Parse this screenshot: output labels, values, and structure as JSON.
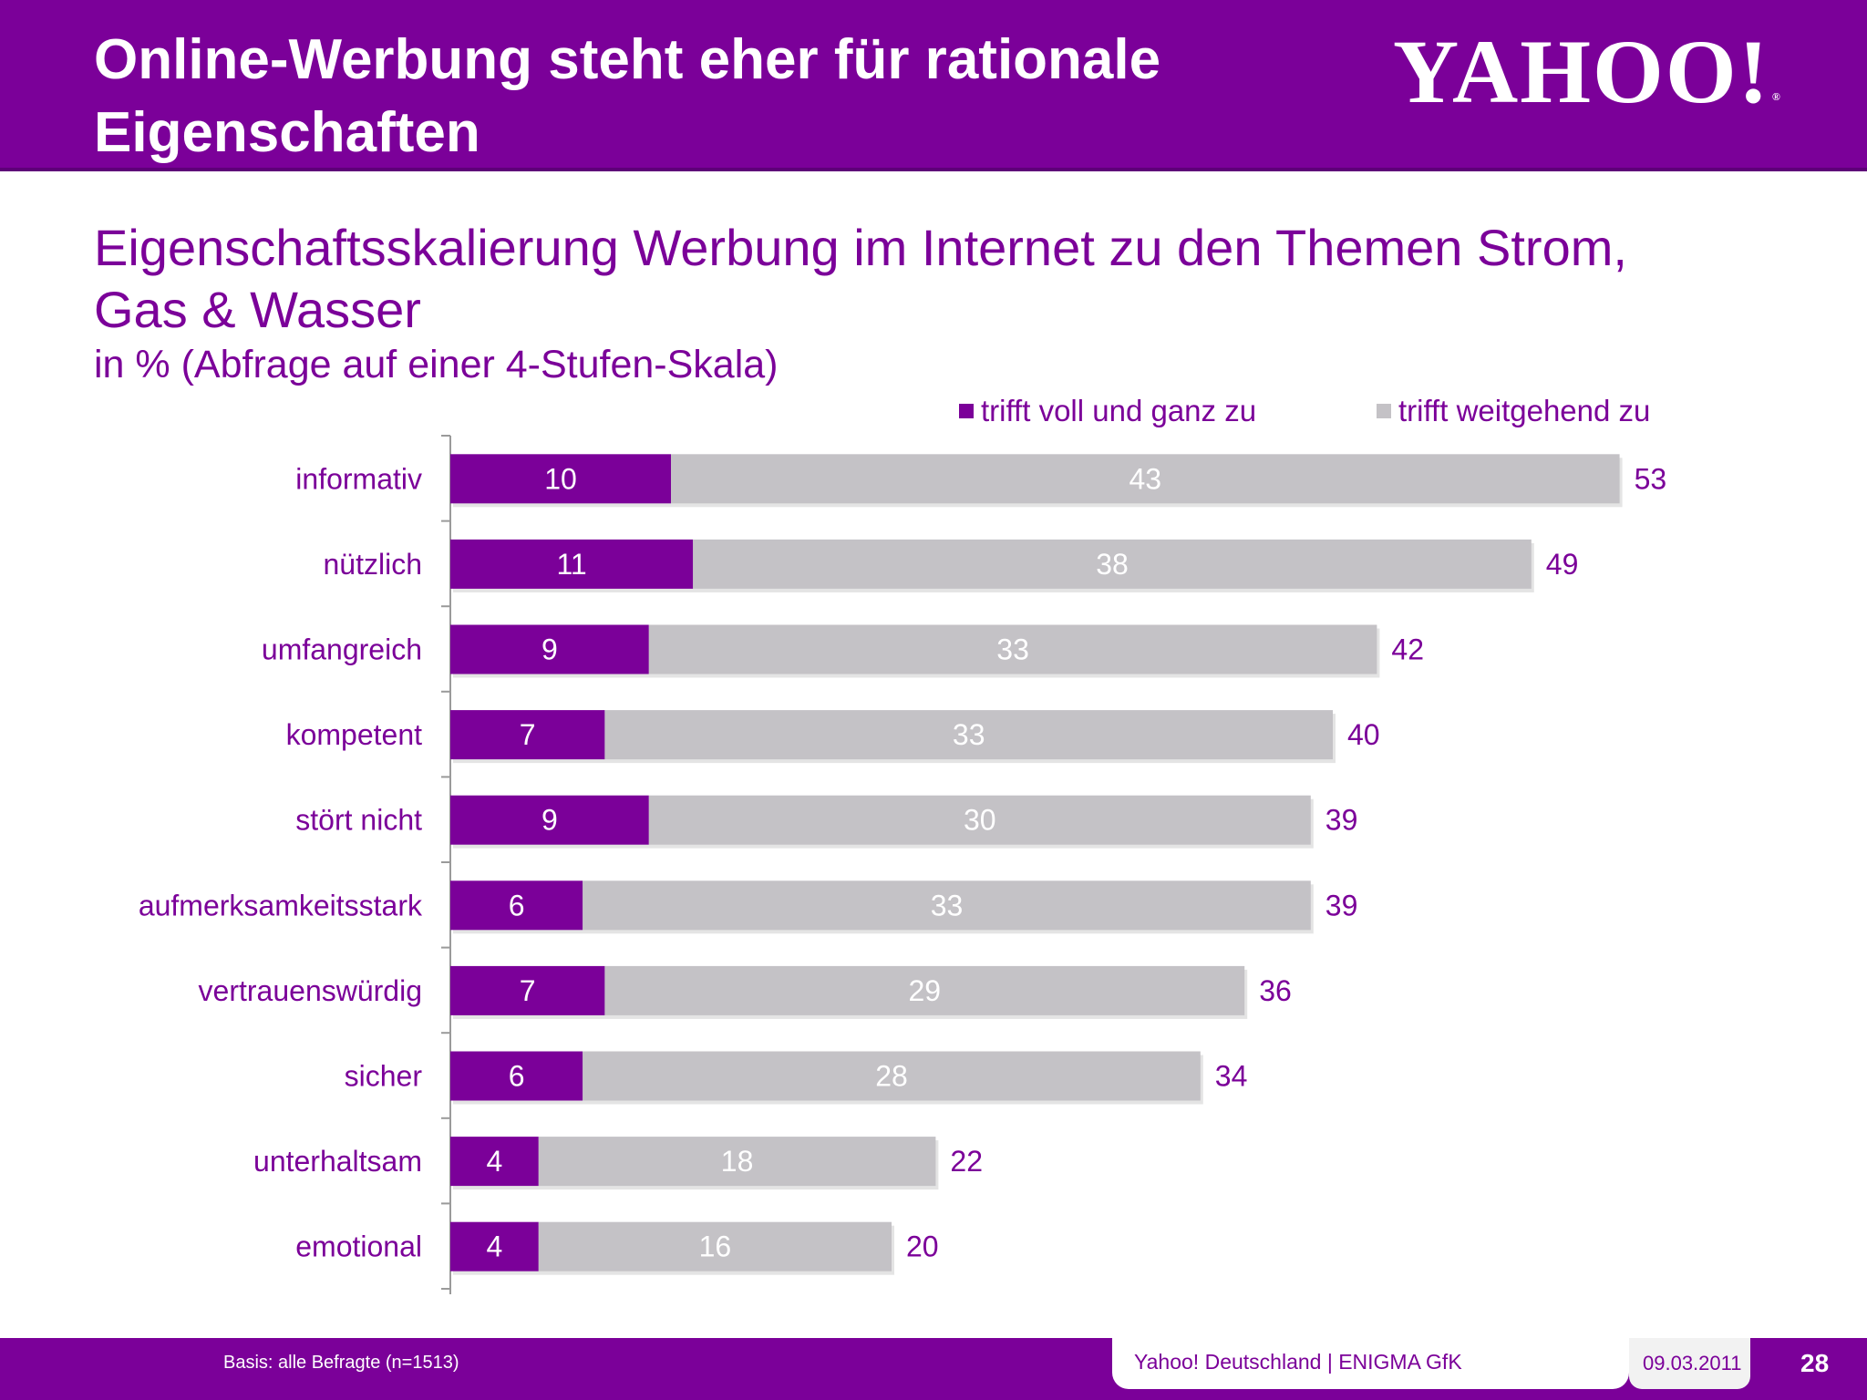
{
  "header": {
    "title": "Online-Werbung steht eher für rationale Eigenschaften",
    "logo": "YAHOO!",
    "logo_reg": "®"
  },
  "subtitle": "Eigenschaftsskalierung Werbung im Internet zu den Themen Strom, Gas & Wasser",
  "subtitle2": "in % (Abfrage auf einer 4-Stufen-Skala)",
  "chart_data": {
    "type": "bar",
    "orientation": "horizontal",
    "stacked": true,
    "categories": [
      "informativ",
      "nützlich",
      "umfangreich",
      "kompetent",
      "stört nicht",
      "aufmerksamkeitsstark",
      "vertrauenswürdig",
      "sicher",
      "unterhaltsam",
      "emotional"
    ],
    "series": [
      {
        "name": "trifft voll und ganz zu",
        "color": "#7b0099",
        "values": [
          10,
          11,
          9,
          7,
          9,
          6,
          7,
          6,
          4,
          4
        ]
      },
      {
        "name": "trifft weitgehend zu",
        "color": "#c4c2c6",
        "values": [
          43,
          38,
          33,
          33,
          30,
          33,
          29,
          28,
          18,
          16
        ]
      }
    ],
    "totals": [
      53,
      49,
      42,
      40,
      39,
      39,
      36,
      34,
      22,
      20
    ],
    "legend_position": "top-right",
    "grid": false
  },
  "footer": {
    "basis": "Basis:  alle Befragte (n=1513)",
    "company": "Yahoo! Deutschland | ENIGMA GfK",
    "date": "09.03.2011",
    "page": "28"
  }
}
